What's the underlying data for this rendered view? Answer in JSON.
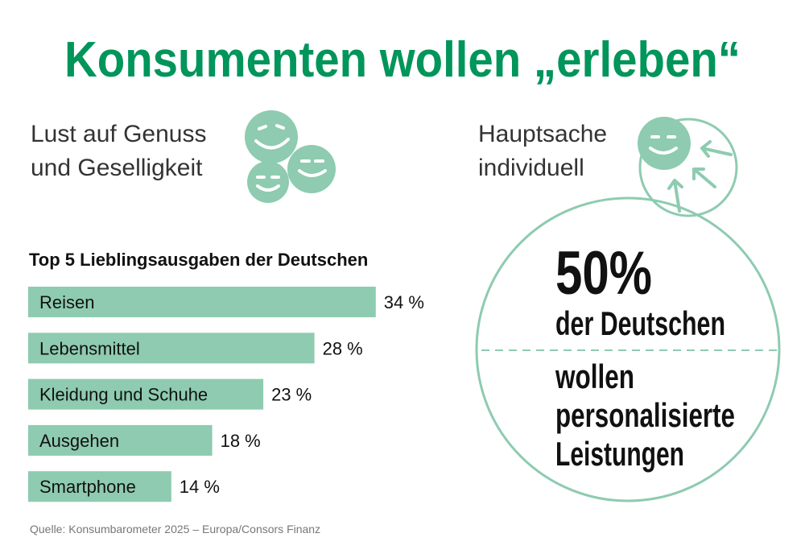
{
  "title": "Konsumenten wollen „erleben“",
  "left_heading": [
    "Lust auf Genuss",
    "und Geselligkeit"
  ],
  "right_heading": [
    "Hauptsache",
    "individuell"
  ],
  "chart_data": {
    "type": "bar",
    "orientation": "horizontal",
    "title": "Top 5 Lieblingsausgaben der Deutschen",
    "categories": [
      "Reisen",
      "Lebensmittel",
      "Kleidung und Schuhe",
      "Ausgehen",
      "Smartphone"
    ],
    "values": [
      34,
      28,
      23,
      18,
      14
    ],
    "value_labels": [
      "34 %",
      "28 %",
      "23 %",
      "18 %",
      "14 %"
    ],
    "color": "#8ecbb0"
  },
  "highlight": {
    "figure": "50%",
    "lines": [
      "der Deutschen",
      "wollen",
      "personalisierte",
      "Leistungen"
    ]
  },
  "source": "Quelle: Konsumbarometer 2025 – Europa/Consors Finanz"
}
